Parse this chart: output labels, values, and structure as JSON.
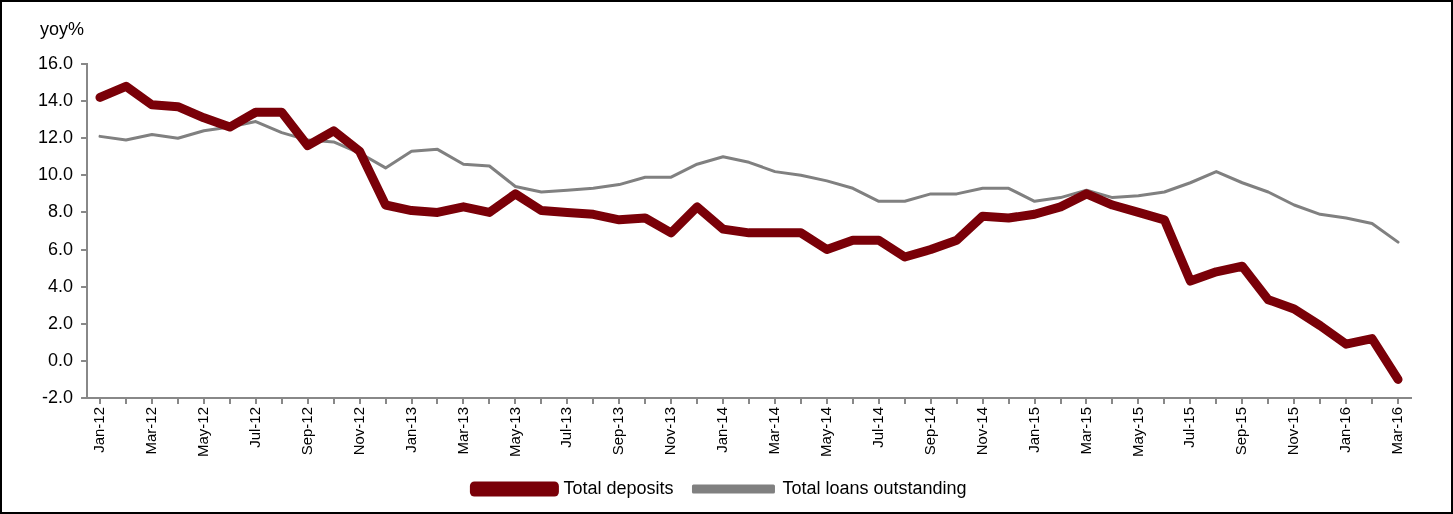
{
  "chart_data": {
    "type": "line",
    "ylabel": "yoy%",
    "categories": [
      "Jan-12",
      null,
      "Mar-12",
      null,
      "May-12",
      null,
      "Jul-12",
      null,
      "Sep-12",
      null,
      "Nov-12",
      null,
      "Jan-13",
      null,
      "Mar-13",
      null,
      "May-13",
      null,
      "Jul-13",
      null,
      "Sep-13",
      null,
      "Nov-13",
      null,
      "Jan-14",
      null,
      "Mar-14",
      null,
      "May-14",
      null,
      "Jul-14",
      null,
      "Sep-14",
      null,
      "Nov-14",
      null,
      "Jan-15",
      null,
      "Mar-15",
      null,
      "May-15",
      null,
      "Jul-15",
      null,
      "Sep-15",
      null,
      "Nov-15",
      null,
      "Jan-16",
      null,
      "Mar-16"
    ],
    "series": [
      {
        "name": "Total deposits",
        "color": "#7a0008",
        "values": [
          14.2,
          14.8,
          13.8,
          13.7,
          13.1,
          12.6,
          13.4,
          13.4,
          11.6,
          12.4,
          11.3,
          8.4,
          8.1,
          8.0,
          8.3,
          8.0,
          9.0,
          8.1,
          8.0,
          7.9,
          7.6,
          7.7,
          6.9,
          8.3,
          7.1,
          6.9,
          6.9,
          6.9,
          6.0,
          6.5,
          6.5,
          5.6,
          6.0,
          6.5,
          7.8,
          7.7,
          7.9,
          8.3,
          9.0,
          8.4,
          8.0,
          7.6,
          4.3,
          4.8,
          5.1,
          3.3,
          2.8,
          1.9,
          0.9,
          1.2,
          -1.0
        ]
      },
      {
        "name": "Total loans outstanding",
        "color": "#808080",
        "values": [
          12.1,
          11.9,
          12.2,
          12.0,
          12.4,
          12.6,
          12.9,
          12.3,
          11.9,
          11.8,
          11.2,
          10.4,
          11.3,
          11.4,
          10.6,
          10.5,
          9.4,
          9.1,
          9.2,
          9.3,
          9.5,
          9.9,
          9.9,
          10.6,
          11.0,
          10.7,
          10.2,
          10.0,
          9.7,
          9.3,
          8.6,
          8.6,
          9.0,
          9.0,
          9.3,
          9.3,
          8.6,
          8.8,
          9.2,
          8.8,
          8.9,
          9.1,
          9.6,
          10.2,
          9.6,
          9.1,
          8.4,
          7.9,
          7.7,
          7.4,
          6.4
        ]
      }
    ],
    "ylim": [
      -2,
      16
    ],
    "yticks": [
      {
        "value": -2,
        "label": "-2.0"
      },
      {
        "value": 0,
        "label": "0.0"
      },
      {
        "value": 2,
        "label": "2.0"
      },
      {
        "value": 4,
        "label": "4.0"
      },
      {
        "value": 6,
        "label": "6.0"
      },
      {
        "value": 8,
        "label": "8.0"
      },
      {
        "value": 10,
        "label": "10.0"
      },
      {
        "value": 12,
        "label": "12.0"
      },
      {
        "value": 14,
        "label": "14.0"
      },
      {
        "value": 16,
        "label": "16.0"
      }
    ],
    "legend": "bottom",
    "marker": "none"
  }
}
